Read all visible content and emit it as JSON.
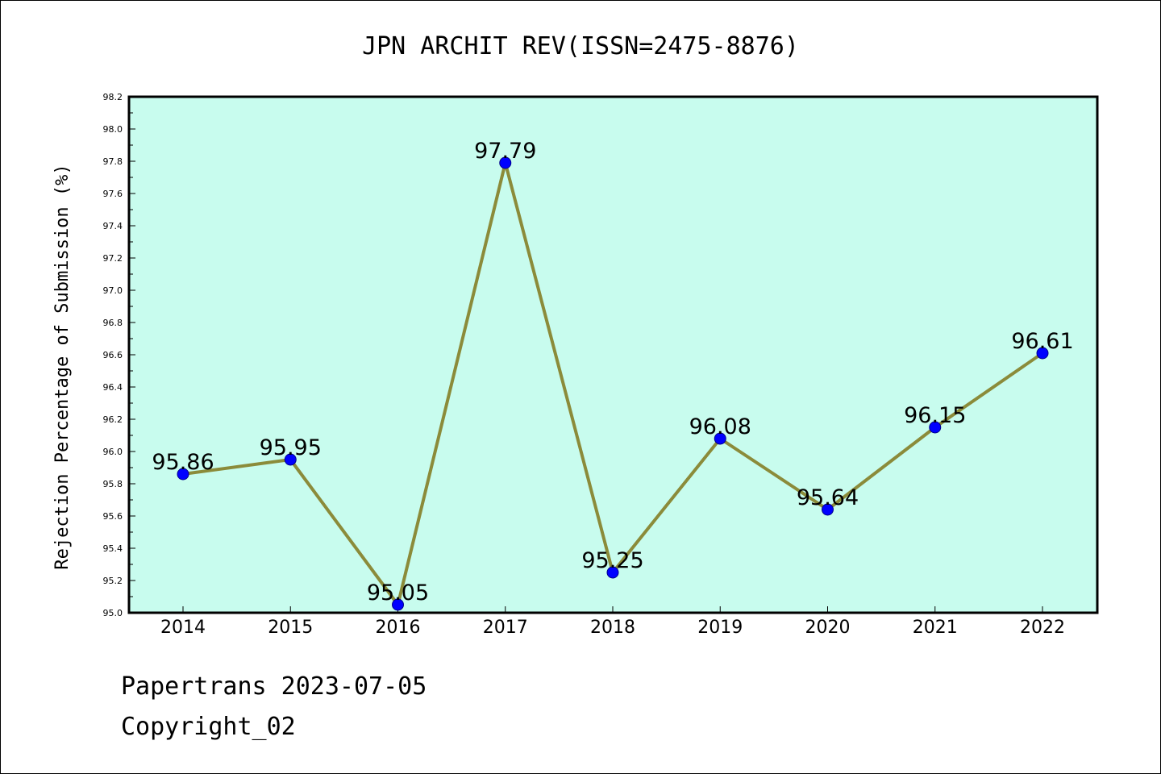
{
  "chart_data": {
    "type": "line",
    "title": "JPN ARCHIT REV(ISSN=2475-8876)",
    "xlabel": "",
    "ylabel": "Rejection Percentage of Submission (%)",
    "categories": [
      "2014",
      "2015",
      "2016",
      "2017",
      "2018",
      "2019",
      "2020",
      "2021",
      "2022"
    ],
    "values": [
      95.86,
      95.95,
      95.05,
      97.79,
      95.25,
      96.08,
      95.64,
      96.15,
      96.61
    ],
    "data_labels": [
      "95.86",
      "95.95",
      "95.05",
      "97.79",
      "95.25",
      "96.08",
      "95.64",
      "96.15",
      "96.61"
    ],
    "ylim": [
      95.0,
      98.2
    ],
    "yticks": [
      "95.0",
      "95.2",
      "95.4",
      "95.6",
      "95.8",
      "96.0",
      "96.2",
      "96.4",
      "96.6",
      "96.8",
      "97.0",
      "97.2",
      "97.4",
      "97.6",
      "97.8",
      "98.0",
      "98.2"
    ],
    "grid": false,
    "legend": "none",
    "colors": {
      "plot_background": "#c8fcee",
      "line": "#8b8b3a",
      "marker": "#0000ff"
    }
  },
  "footer": {
    "line1": "Papertrans 2023-07-05",
    "line2": "Copyright_02"
  }
}
